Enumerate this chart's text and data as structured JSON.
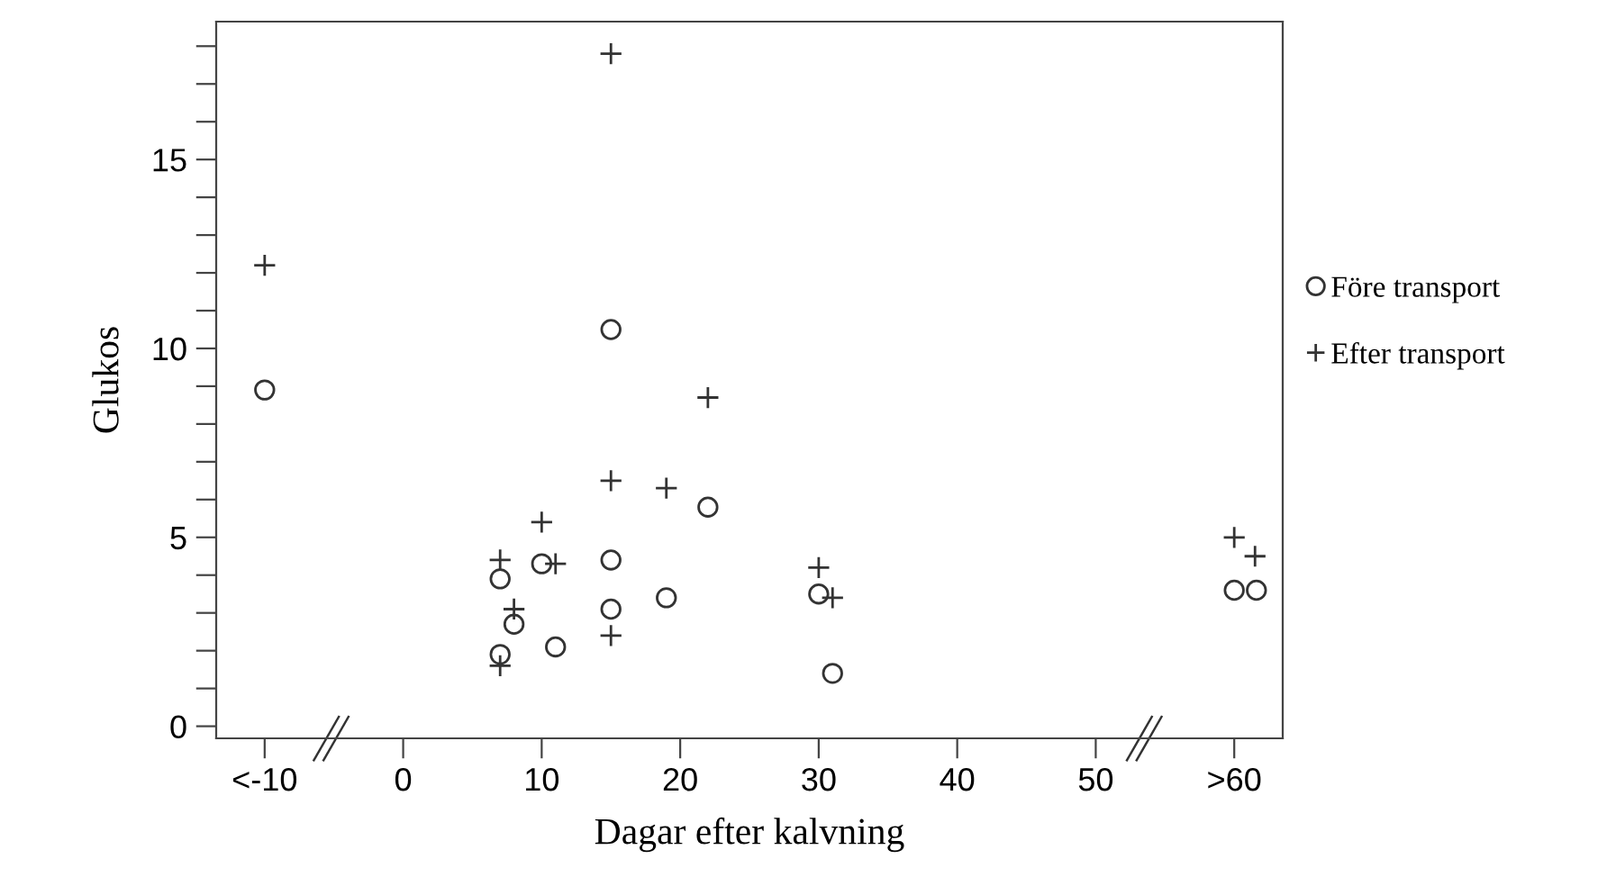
{
  "chart_data": {
    "type": "scatter",
    "xlabel": "Dagar efter kalvning",
    "ylabel": "Glukos",
    "xlim": [
      -13.5,
      63.5
    ],
    "ylim": [
      -0.32,
      18.65
    ],
    "xticks": [
      {
        "value": -10,
        "label": "<-10"
      },
      0,
      10,
      20,
      30,
      40,
      50,
      {
        "value": 60,
        "label": ">60"
      }
    ],
    "yticks": [
      0,
      {
        "value": 1,
        "label": null
      },
      {
        "value": 2,
        "label": null
      },
      {
        "value": 3,
        "label": null
      },
      {
        "value": 4,
        "label": null
      },
      5,
      {
        "value": 6,
        "label": null
      },
      {
        "value": 7,
        "label": null
      },
      {
        "value": 8,
        "label": null
      },
      {
        "value": 9,
        "label": null
      },
      10,
      {
        "value": 11,
        "label": null
      },
      {
        "value": 12,
        "label": null
      },
      {
        "value": 13,
        "label": null
      },
      {
        "value": 14,
        "label": null
      },
      15,
      {
        "value": 16,
        "label": null
      },
      {
        "value": 17,
        "label": null
      },
      {
        "value": 18,
        "label": null
      }
    ],
    "grid": false,
    "legend": "right",
    "series": [
      {
        "name": "Före transport",
        "color": "#333333",
        "marker": "circle",
        "x": [
          -10,
          15,
          22,
          10,
          15,
          7,
          19,
          15,
          8,
          11,
          7,
          30,
          31,
          60,
          61.6
        ],
        "values": [
          8.9,
          10.5,
          5.8,
          4.3,
          4.4,
          3.9,
          3.4,
          3.1,
          2.7,
          2.1,
          1.9,
          3.5,
          1.4,
          3.6,
          3.6
        ]
      },
      {
        "name": "Efter transport",
        "color": "#333333",
        "marker": "cross",
        "x": [
          -10,
          15,
          22,
          15,
          19,
          10,
          7,
          11,
          8,
          15,
          7,
          30,
          31,
          60,
          61.5
        ],
        "values": [
          12.2,
          17.8,
          8.7,
          6.5,
          6.3,
          5.4,
          4.4,
          4.3,
          3.1,
          2.4,
          1.6,
          4.2,
          3.4,
          5.0,
          4.5
        ]
      }
    ]
  }
}
